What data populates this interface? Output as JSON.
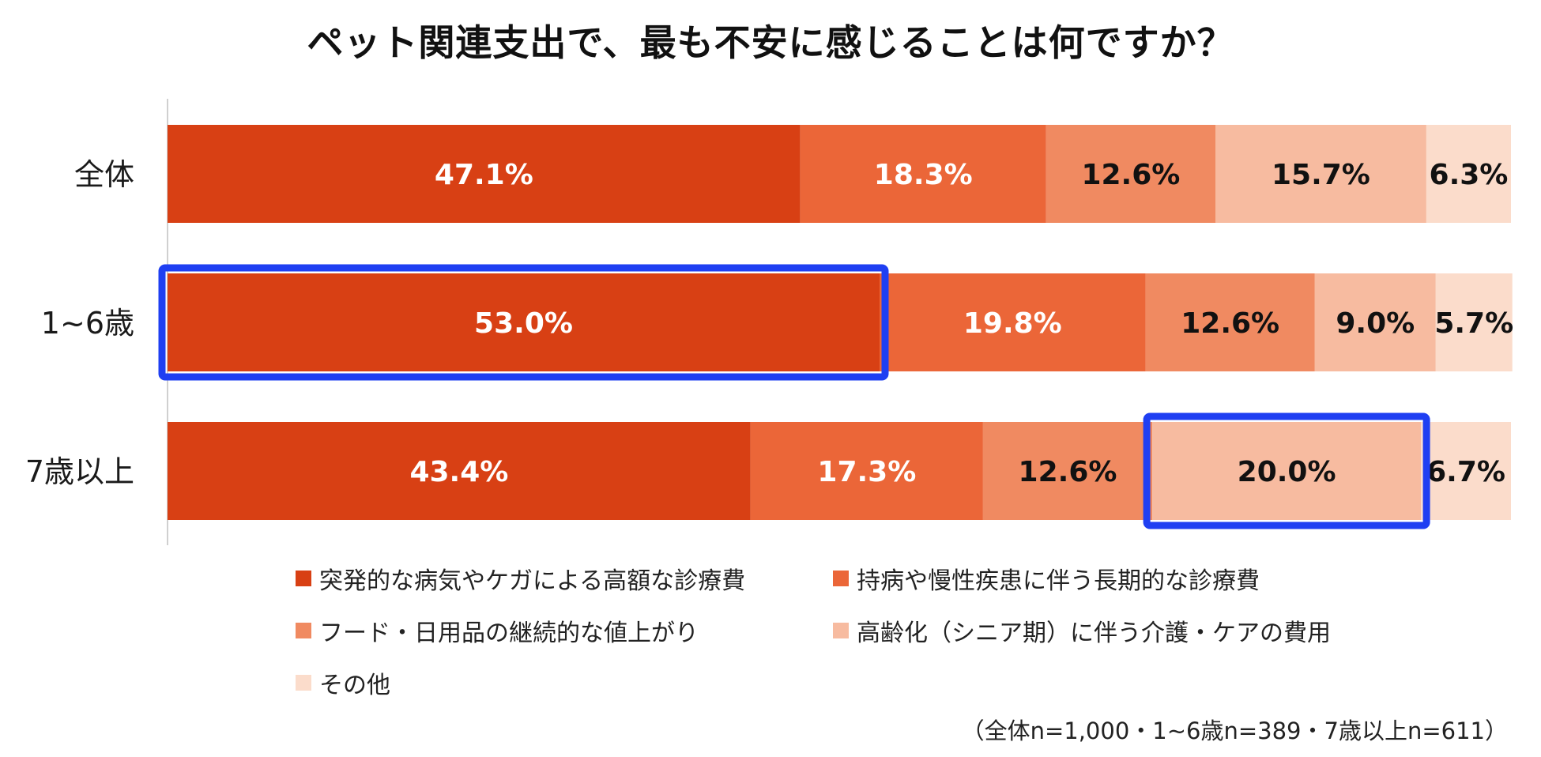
{
  "chart_data": {
    "type": "bar",
    "orientation": "horizontal-stacked-100",
    "title": "ペット関連支出で、最も不安に感じることは何ですか？",
    "categories": [
      "全体",
      "1~6歳",
      "7歳以上"
    ],
    "series": [
      {
        "name": "突発的な病気やケガによる高額な診療費",
        "color": "#d84014",
        "label_color": "#ffffff",
        "values": [
          47.1,
          53.0,
          43.4
        ]
      },
      {
        "name": "持病や慢性疾患に伴う長期的な診療費",
        "color": "#eb6638",
        "label_color": "#ffffff",
        "values": [
          18.3,
          19.8,
          17.3
        ]
      },
      {
        "name": "フード・日用品の継続的な値上がり",
        "color": "#f08a61",
        "label_color": "#111111",
        "values": [
          12.6,
          12.6,
          12.6
        ]
      },
      {
        "name": "高齢化（シニア期）に伴う介護・ケアの費用",
        "color": "#f7bba0",
        "label_color": "#111111",
        "values": [
          15.7,
          9.0,
          20.0
        ]
      },
      {
        "name": "その他",
        "color": "#fbdccb",
        "label_color": "#111111",
        "values": [
          6.3,
          5.7,
          6.7
        ]
      }
    ],
    "value_labels": [
      [
        "47.1%",
        "18.3%",
        "12.6%",
        "15.7%",
        "6.3%"
      ],
      [
        "53.0%",
        "19.8%",
        "12.6%",
        "9.0%",
        "5.7%"
      ],
      [
        "43.4%",
        "17.3%",
        "12.6%",
        "20.0%",
        "6.7%"
      ]
    ],
    "xlim": [
      0,
      100
    ],
    "legend_position": "bottom",
    "highlights": [
      {
        "category_index": 1,
        "series_index": 0,
        "color": "#1f3ff2"
      },
      {
        "category_index": 2,
        "series_index": 3,
        "color": "#1f3ff2"
      }
    ]
  },
  "note": "（全体n=1,000・1~6歳n=389・7歳以上n=611）"
}
